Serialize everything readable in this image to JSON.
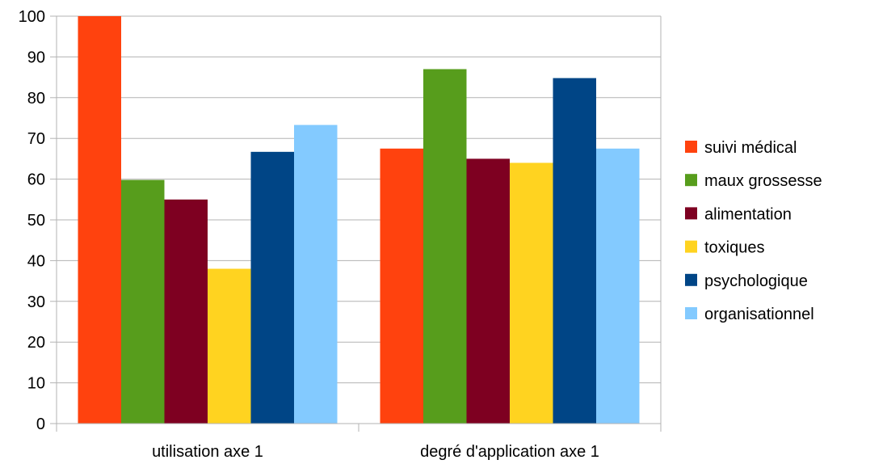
{
  "chart_data": {
    "type": "bar",
    "categories": [
      "utilisation axe 1",
      "degré d'application axe 1"
    ],
    "series": [
      {
        "name": "suivi médical",
        "color": "#ff420e",
        "values": [
          100,
          67.5
        ]
      },
      {
        "name": "maux grossesse",
        "color": "#579d1c",
        "values": [
          59.8,
          87
        ]
      },
      {
        "name": "alimentation",
        "color": "#7e0021",
        "values": [
          55,
          65
        ]
      },
      {
        "name": "toxiques",
        "color": "#ffd320",
        "values": [
          38,
          64
        ]
      },
      {
        "name": "psychologique",
        "color": "#004586",
        "values": [
          66.7,
          84.8
        ]
      },
      {
        "name": "organisationnel",
        "color": "#83caff",
        "values": [
          73.3,
          67.5
        ]
      }
    ],
    "ylim": [
      0,
      100
    ],
    "yticks": [
      0,
      10,
      20,
      30,
      40,
      50,
      60,
      70,
      80,
      90,
      100
    ],
    "grid": true,
    "legend": "right"
  }
}
